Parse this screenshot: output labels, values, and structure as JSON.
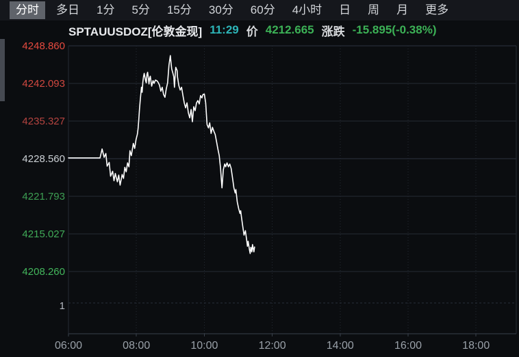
{
  "tabbar": {
    "items": [
      {
        "name": "tab-intraday",
        "label": "分时",
        "active": true
      },
      {
        "name": "tab-multiday",
        "label": "多日",
        "active": false
      },
      {
        "name": "tab-1min",
        "label": "1分",
        "active": false
      },
      {
        "name": "tab-5min",
        "label": "5分",
        "active": false
      },
      {
        "name": "tab-15min",
        "label": "15分",
        "active": false
      },
      {
        "name": "tab-30min",
        "label": "30分",
        "active": false
      },
      {
        "name": "tab-60min",
        "label": "60分",
        "active": false
      },
      {
        "name": "tab-4hour",
        "label": "4小时",
        "active": false
      },
      {
        "name": "tab-day",
        "label": "日",
        "active": false
      },
      {
        "name": "tab-week",
        "label": "周",
        "active": false
      },
      {
        "name": "tab-month",
        "label": "月",
        "active": false
      },
      {
        "name": "tab-more",
        "label": "更多",
        "active": false
      }
    ]
  },
  "header": {
    "symbol": "SPTAUUSDOZ[伦敦金现]",
    "time": "11:29",
    "time_color": "#2db5b8",
    "price_label": "价",
    "price": "4212.665",
    "price_color": "#3cb156",
    "change_label": "涨跌",
    "change": "-15.895(-0.38%)",
    "change_color": "#3cb156"
  },
  "chart_data": {
    "type": "line",
    "symbol": "SPTAUUSDOZ",
    "symbol_name": "伦敦金现",
    "interval": "分时",
    "reference_price": 4228.56,
    "last_time": "11:29",
    "last_price": 4212.665,
    "change": -15.895,
    "change_pct": "-0.38%",
    "line_color": "#ffffff",
    "grid_color": "#242a33",
    "grid_strong_color": "#2e3440",
    "axis_color": "#3a414b",
    "x_label_color": "#9aa1a9",
    "y_axis": {
      "ticks": [
        {
          "value": "4248.860",
          "color": "#e64a3f"
        },
        {
          "value": "4242.093",
          "color": "#d24840"
        },
        {
          "value": "4235.327",
          "color": "#b54440"
        },
        {
          "value": "4228.560",
          "color": "#ccd1d6"
        },
        {
          "value": "4221.793",
          "color": "#3d9e53"
        },
        {
          "value": "4215.027",
          "color": "#40ab58"
        },
        {
          "value": "4208.260",
          "color": "#43b65c"
        }
      ]
    },
    "x_axis": {
      "tick_hours": [
        6,
        8,
        10,
        12,
        14,
        16,
        18
      ],
      "tick_labels": [
        "06:00",
        "08:00",
        "10:00",
        "12:00",
        "14:00",
        "16:00",
        "18:00"
      ]
    },
    "volume_axis_label": "1",
    "series": [
      {
        "name": "price",
        "points": [
          [
            6.0,
            4228.7
          ],
          [
            6.93,
            4228.7
          ],
          [
            6.99,
            4230.3
          ],
          [
            7.05,
            4228.8
          ],
          [
            7.1,
            4229.5
          ],
          [
            7.14,
            4227.2
          ],
          [
            7.2,
            4227.9
          ],
          [
            7.24,
            4225.4
          ],
          [
            7.3,
            4226.3
          ],
          [
            7.34,
            4224.6
          ],
          [
            7.38,
            4225.9
          ],
          [
            7.44,
            4224.4
          ],
          [
            7.48,
            4225.6
          ],
          [
            7.52,
            4223.8
          ],
          [
            7.58,
            4225.7
          ],
          [
            7.62,
            4225.0
          ],
          [
            7.66,
            4227.0
          ],
          [
            7.7,
            4226.2
          ],
          [
            7.74,
            4227.8
          ],
          [
            7.78,
            4227.1
          ],
          [
            7.81,
            4230.0
          ],
          [
            7.85,
            4229.1
          ],
          [
            7.91,
            4231.3
          ],
          [
            7.95,
            4230.4
          ],
          [
            7.99,
            4232.0
          ],
          [
            8.03,
            4233.0
          ],
          [
            8.05,
            4234.0
          ],
          [
            8.07,
            4235.6
          ],
          [
            8.09,
            4237.4
          ],
          [
            8.11,
            4238.9
          ],
          [
            8.13,
            4240.1
          ],
          [
            8.15,
            4241.4
          ],
          [
            8.17,
            4240.5
          ],
          [
            8.19,
            4242.3
          ],
          [
            8.21,
            4243.3
          ],
          [
            8.23,
            4243.9
          ],
          [
            8.27,
            4242.6
          ],
          [
            8.29,
            4242.2
          ],
          [
            8.31,
            4243.7
          ],
          [
            8.33,
            4244.1
          ],
          [
            8.35,
            4243.1
          ],
          [
            8.37,
            4242.0
          ],
          [
            8.39,
            4243.0
          ],
          [
            8.41,
            4243.4
          ],
          [
            8.45,
            4241.6
          ],
          [
            8.49,
            4242.6
          ],
          [
            8.52,
            4242.1
          ],
          [
            8.56,
            4242.7
          ],
          [
            8.6,
            4242.6
          ],
          [
            8.64,
            4242.3
          ],
          [
            8.68,
            4241.8
          ],
          [
            8.72,
            4240.7
          ],
          [
            8.76,
            4241.4
          ],
          [
            8.8,
            4240.1
          ],
          [
            8.84,
            4239.6
          ],
          [
            8.88,
            4241.1
          ],
          [
            8.92,
            4242.2
          ],
          [
            8.96,
            4245.4
          ],
          [
            9.0,
            4247.1
          ],
          [
            9.02,
            4245.8
          ],
          [
            9.04,
            4244.7
          ],
          [
            9.08,
            4243.8
          ],
          [
            9.1,
            4243.3
          ],
          [
            9.12,
            4241.4
          ],
          [
            9.14,
            4243.3
          ],
          [
            9.16,
            4245.0
          ],
          [
            9.2,
            4244.4
          ],
          [
            9.21,
            4243.3
          ],
          [
            9.25,
            4241.7
          ],
          [
            9.29,
            4240.9
          ],
          [
            9.33,
            4241.4
          ],
          [
            9.37,
            4239.9
          ],
          [
            9.41,
            4238.6
          ],
          [
            9.45,
            4237.7
          ],
          [
            9.49,
            4238.6
          ],
          [
            9.53,
            4236.8
          ],
          [
            9.57,
            4235.9
          ],
          [
            9.61,
            4237.4
          ],
          [
            9.65,
            4235.2
          ],
          [
            9.69,
            4237.9
          ],
          [
            9.73,
            4237.2
          ],
          [
            9.77,
            4238.6
          ],
          [
            9.81,
            4239.0
          ],
          [
            9.85,
            4238.4
          ],
          [
            9.89,
            4239.9
          ],
          [
            9.93,
            4239.5
          ],
          [
            9.96,
            4240.1
          ],
          [
            10.0,
            4240.2
          ],
          [
            10.04,
            4238.6
          ],
          [
            10.08,
            4234.7
          ],
          [
            10.12,
            4234.1
          ],
          [
            10.16,
            4235.0
          ],
          [
            10.2,
            4233.1
          ],
          [
            10.24,
            4234.2
          ],
          [
            10.28,
            4233.5
          ],
          [
            10.32,
            4232.9
          ],
          [
            10.36,
            4231.6
          ],
          [
            10.4,
            4230.3
          ],
          [
            10.44,
            4229.1
          ],
          [
            10.48,
            4226.7
          ],
          [
            10.5,
            4224.9
          ],
          [
            10.52,
            4223.3
          ],
          [
            10.56,
            4226.6
          ],
          [
            10.6,
            4227.6
          ],
          [
            10.63,
            4227.1
          ],
          [
            10.67,
            4227.8
          ],
          [
            10.71,
            4227.1
          ],
          [
            10.75,
            4227.6
          ],
          [
            10.79,
            4226.8
          ],
          [
            10.83,
            4225.1
          ],
          [
            10.87,
            4223.3
          ],
          [
            10.91,
            4222.4
          ],
          [
            10.93,
            4223.0
          ],
          [
            10.97,
            4220.8
          ],
          [
            11.01,
            4219.6
          ],
          [
            11.05,
            4218.7
          ],
          [
            11.07,
            4219.2
          ],
          [
            11.09,
            4218.2
          ],
          [
            11.13,
            4216.5
          ],
          [
            11.17,
            4214.8
          ],
          [
            11.21,
            4215.6
          ],
          [
            11.25,
            4213.8
          ],
          [
            11.27,
            4212.8
          ],
          [
            11.29,
            4213.7
          ],
          [
            11.33,
            4212.1
          ],
          [
            11.35,
            4211.5
          ],
          [
            11.37,
            4212.6
          ],
          [
            11.4,
            4211.8
          ],
          [
            11.42,
            4213.1
          ],
          [
            11.46,
            4211.8
          ],
          [
            11.48,
            4212.665
          ]
        ]
      }
    ]
  }
}
